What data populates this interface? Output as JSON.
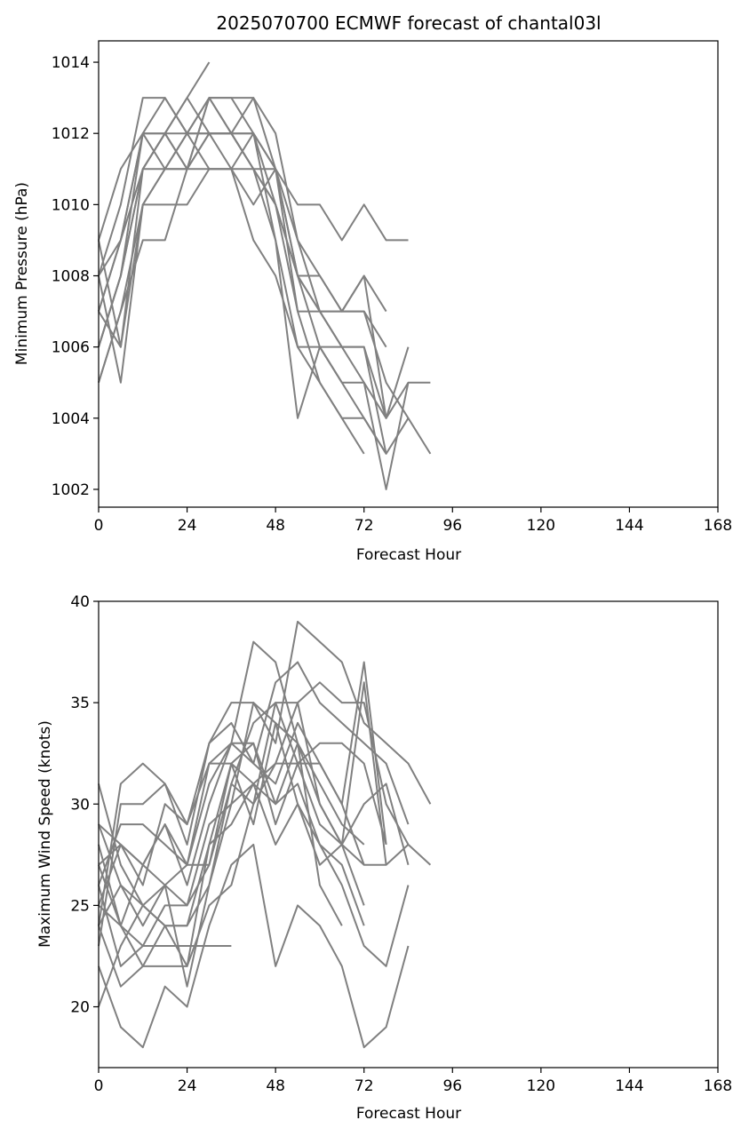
{
  "chart_data": [
    {
      "type": "line",
      "title": "2025070700 ECMWF forecast of chantal03l",
      "xlabel": "Forecast Hour",
      "ylabel": "Minimum Pressure (hPa)",
      "xlim": [
        0,
        168
      ],
      "ylim": [
        1001.5,
        1014.6
      ],
      "xticks": [
        "0",
        "24",
        "48",
        "72",
        "96",
        "120",
        "144",
        "168"
      ],
      "yticks": [
        "1002",
        "1004",
        "1006",
        "1008",
        "1010",
        "1012",
        "1014"
      ],
      "grid": false,
      "line_color": "#808080",
      "series": [
        {
          "x": [
            0,
            6,
            12,
            18,
            24,
            30,
            36,
            42,
            48,
            54,
            60,
            66,
            72,
            78
          ],
          "y": [
            1009,
            1011,
            1012,
            1013,
            1012,
            1013,
            1012,
            1011,
            1010,
            1008,
            1006,
            1005,
            1004,
            1003
          ]
        },
        {
          "x": [
            0,
            6,
            12,
            18,
            24,
            30,
            36,
            42,
            48,
            54,
            60,
            66,
            72,
            78,
            84
          ],
          "y": [
            1008,
            1010,
            1013,
            1013,
            1012,
            1013,
            1013,
            1012,
            1011,
            1010,
            1010,
            1009,
            1010,
            1009,
            1009
          ]
        },
        {
          "x": [
            0,
            6,
            12,
            18,
            24,
            30,
            36,
            42,
            48,
            54,
            60,
            66,
            72,
            78,
            84
          ],
          "y": [
            1007,
            1009,
            1012,
            1012,
            1011,
            1012,
            1012,
            1011,
            1010,
            1008,
            1008,
            1007,
            1007,
            1005,
            1004
          ]
        },
        {
          "x": [
            0,
            6,
            12,
            18,
            24,
            30,
            36,
            42,
            48,
            54,
            60,
            66,
            72,
            78,
            84,
            90
          ],
          "y": [
            1006,
            1008,
            1011,
            1012,
            1013,
            1012,
            1012,
            1011,
            1011,
            1009,
            1008,
            1007,
            1008,
            1004,
            1005,
            1005
          ]
        },
        {
          "x": [
            0,
            6,
            12,
            18,
            24,
            30,
            36,
            42,
            48,
            54,
            60,
            66,
            72,
            78
          ],
          "y": [
            1005,
            1007,
            1010,
            1011,
            1011,
            1012,
            1012,
            1012,
            1011,
            1008,
            1007,
            1006,
            1006,
            1003
          ]
        },
        {
          "x": [
            0,
            6,
            12,
            18,
            24,
            30
          ],
          "y": [
            1007,
            1009,
            1011,
            1012,
            1013,
            1014
          ]
        },
        {
          "x": [
            0,
            6,
            12,
            18,
            24,
            30,
            36,
            42,
            48,
            54,
            60,
            66,
            72
          ],
          "y": [
            1008,
            1005,
            1010,
            1010,
            1010,
            1011,
            1011,
            1010,
            1011,
            1007,
            1005,
            1004,
            1003
          ]
        },
        {
          "x": [
            0,
            6,
            12,
            18,
            24,
            30,
            36,
            42,
            48,
            54,
            60,
            66,
            72,
            78,
            84
          ],
          "y": [
            1006,
            1008,
            1012,
            1011,
            1012,
            1012,
            1011,
            1011,
            1009,
            1006,
            1006,
            1005,
            1005,
            1002,
            1005
          ]
        },
        {
          "x": [
            0,
            6,
            12,
            18,
            24,
            30,
            36,
            42,
            48,
            54,
            60,
            66,
            72,
            78,
            84,
            90
          ],
          "y": [
            1005,
            1007,
            1009,
            1009,
            1011,
            1011,
            1011,
            1009,
            1008,
            1006,
            1005,
            1004,
            1004,
            1003,
            1004,
            1003
          ]
        },
        {
          "x": [
            0,
            6,
            12,
            18,
            24,
            30,
            36,
            42,
            48,
            54,
            60,
            66,
            72,
            78
          ],
          "y": [
            1009,
            1006,
            1011,
            1012,
            1011,
            1013,
            1013,
            1013,
            1012,
            1009,
            1007,
            1007,
            1008,
            1007
          ]
        },
        {
          "x": [
            0,
            6,
            12,
            18,
            24,
            30,
            36,
            42,
            48,
            54,
            60,
            66,
            72,
            78,
            84
          ],
          "y": [
            1006,
            1008,
            1011,
            1011,
            1012,
            1011,
            1011,
            1012,
            1009,
            1004,
            1006,
            1006,
            1005,
            1004,
            1006
          ]
        },
        {
          "x": [
            0,
            6,
            12,
            18,
            24,
            30,
            36,
            42,
            48,
            54,
            60,
            66,
            72,
            78
          ],
          "y": [
            1008,
            1009,
            1012,
            1012,
            1012,
            1012,
            1012,
            1012,
            1010,
            1007,
            1007,
            1006,
            1006,
            1004
          ]
        },
        {
          "x": [
            0,
            6,
            12,
            18,
            24,
            30,
            36,
            42,
            48,
            54,
            60,
            66,
            72,
            78
          ],
          "y": [
            1007,
            1006,
            1010,
            1011,
            1011,
            1013,
            1012,
            1013,
            1011,
            1008,
            1007,
            1007,
            1007,
            1006
          ]
        }
      ]
    },
    {
      "type": "line",
      "title": "",
      "xlabel": "Forecast Hour",
      "ylabel": "Maximum Wind Speed (knots)",
      "xlim": [
        0,
        168
      ],
      "ylim": [
        17,
        40
      ],
      "xticks": [
        "0",
        "24",
        "48",
        "72",
        "96",
        "120",
        "144",
        "168"
      ],
      "yticks": [
        "20",
        "25",
        "30",
        "35",
        "40"
      ],
      "grid": false,
      "line_color": "#808080",
      "series": [
        {
          "x": [
            0,
            6,
            12,
            18,
            24,
            30,
            36,
            42,
            48,
            54,
            60,
            66,
            72,
            78,
            84,
            90
          ],
          "y": [
            24,
            31,
            32,
            31,
            29,
            33,
            35,
            35,
            33,
            39,
            38,
            37,
            34,
            33,
            32,
            30
          ]
        },
        {
          "x": [
            0,
            6,
            12,
            18,
            24,
            30,
            36,
            42,
            48,
            54,
            60,
            66,
            72,
            78,
            84
          ],
          "y": [
            23,
            30,
            30,
            31,
            28,
            33,
            34,
            32,
            36,
            37,
            35,
            34,
            33,
            32,
            29
          ]
        },
        {
          "x": [
            0,
            6,
            12,
            18,
            24,
            30,
            36,
            42,
            48,
            54,
            60,
            66,
            72,
            78,
            84
          ],
          "y": [
            25,
            28,
            27,
            29,
            27,
            31,
            33,
            38,
            37,
            33,
            30,
            28,
            27,
            27,
            28
          ]
        },
        {
          "x": [
            0,
            6,
            12,
            18,
            24,
            30,
            36,
            42,
            48,
            54,
            60,
            66,
            72,
            78,
            84
          ],
          "y": [
            29,
            26,
            25,
            26,
            25,
            29,
            30,
            35,
            34,
            30,
            28,
            26,
            23,
            22,
            26
          ]
        },
        {
          "x": [
            0,
            6,
            12,
            18,
            24,
            30,
            36,
            42,
            48,
            54,
            60,
            66,
            72,
            78,
            84
          ],
          "y": [
            22,
            19,
            18,
            21,
            20,
            24,
            27,
            28,
            22,
            25,
            24,
            22,
            18,
            19,
            23
          ]
        },
        {
          "x": [
            0,
            6,
            12,
            18,
            24,
            30,
            36,
            42,
            48,
            54,
            60,
            66,
            72,
            78,
            84,
            90
          ],
          "y": [
            27,
            24,
            22,
            22,
            22,
            25,
            26,
            30,
            32,
            35,
            36,
            35,
            35,
            30,
            28,
            27
          ]
        },
        {
          "x": [
            0,
            6,
            12,
            18,
            24,
            30,
            36
          ],
          "y": [
            25,
            24,
            23,
            23,
            23,
            23,
            23
          ]
        },
        {
          "x": [
            0,
            6,
            12,
            18,
            24,
            30,
            36,
            42,
            48,
            54,
            60,
            66,
            72,
            78
          ],
          "y": [
            26,
            29,
            29,
            28,
            27,
            32,
            33,
            33,
            29,
            32,
            33,
            33,
            32,
            28
          ]
        },
        {
          "x": [
            0,
            6,
            12,
            18,
            24,
            30,
            36,
            42,
            48,
            54,
            60,
            66,
            72,
            78,
            84
          ],
          "y": [
            31,
            27,
            25,
            24,
            24,
            26,
            31,
            34,
            35,
            35,
            30,
            28,
            30,
            31,
            27
          ]
        },
        {
          "x": [
            0,
            6,
            12,
            18,
            24,
            30,
            36,
            42,
            48,
            54,
            60,
            66,
            72,
            78
          ],
          "y": [
            20,
            23,
            25,
            24,
            22,
            28,
            29,
            31,
            32,
            32,
            32,
            30,
            37,
            28
          ]
        },
        {
          "x": [
            0,
            6,
            12,
            18,
            24,
            30,
            36,
            42,
            48,
            54,
            60,
            66,
            72
          ],
          "y": [
            28,
            24,
            27,
            26,
            27,
            27,
            31,
            30,
            35,
            32,
            29,
            28,
            25
          ]
        },
        {
          "x": [
            0,
            6,
            12,
            18,
            24,
            30,
            36,
            42,
            48,
            54,
            60,
            66,
            72,
            78
          ],
          "y": [
            24,
            26,
            24,
            26,
            21,
            26,
            30,
            31,
            28,
            30,
            27,
            28,
            36,
            27
          ]
        },
        {
          "x": [
            0,
            6,
            12,
            18,
            24,
            30,
            36,
            42,
            48,
            54,
            60,
            66
          ],
          "y": [
            26,
            22,
            23,
            25,
            25,
            27,
            32,
            29,
            34,
            33,
            26,
            24
          ]
        },
        {
          "x": [
            0,
            6,
            12,
            18,
            24,
            30,
            36,
            42,
            48,
            54,
            60,
            66,
            72
          ],
          "y": [
            27,
            28,
            26,
            30,
            29,
            32,
            32,
            33,
            30,
            31,
            28,
            27,
            24
          ]
        },
        {
          "x": [
            0,
            6,
            12,
            18,
            24,
            30,
            36,
            42,
            48,
            54,
            60,
            66,
            72
          ],
          "y": [
            29,
            28,
            27,
            29,
            26,
            30,
            33,
            32,
            31,
            34,
            32,
            30,
            27
          ]
        },
        {
          "x": [
            0,
            6,
            12,
            18,
            24,
            30,
            36,
            42,
            48,
            54,
            60,
            66,
            72
          ],
          "y": [
            24,
            21,
            22,
            24,
            24,
            28,
            32,
            31,
            30,
            33,
            31,
            29,
            28
          ]
        }
      ]
    }
  ]
}
